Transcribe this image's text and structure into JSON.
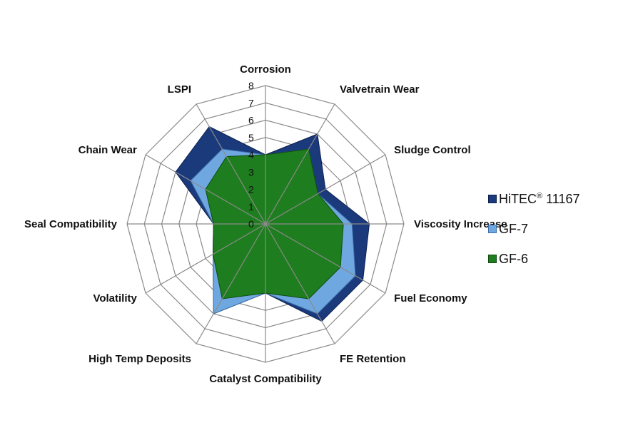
{
  "chart_data": {
    "type": "radar",
    "title": "",
    "axes": [
      "Corrosion",
      "Valvetrain Wear",
      "Sludge Control",
      "Viscosity Increase",
      "Fuel Economy",
      "FE Retention",
      "Catalyst Compatibility",
      "High Temp Deposits",
      "Volatility",
      "Seal Compatibility",
      "Chain Wear",
      "LSPI"
    ],
    "r_ticks": [
      "0",
      "1",
      "2",
      "3",
      "4",
      "5",
      "6",
      "7",
      "8"
    ],
    "rlim": [
      0,
      8
    ],
    "grid": true,
    "legend_position": "right",
    "series": [
      {
        "name": "HiTEC® 11167",
        "color": "#1a3a7c",
        "values": [
          4,
          6,
          4,
          6,
          6.5,
          6.5,
          4,
          6,
          3.5,
          3,
          6,
          6.5
        ]
      },
      {
        "name": "GF-7",
        "color": "#6fa8e0",
        "values": [
          4,
          5,
          3.5,
          5,
          6,
          6,
          4,
          6,
          3.5,
          3,
          5,
          5
        ]
      },
      {
        "name": "GF-6",
        "color": "#1e7d1e",
        "values": [
          4,
          5,
          3.5,
          4.5,
          5,
          5,
          4,
          5,
          3.5,
          3,
          4,
          4.5
        ]
      }
    ]
  },
  "legend": {
    "items": [
      {
        "label": "HiTEC",
        "sup": "®",
        "rest": " 11167",
        "color": "#1a3a7c"
      },
      {
        "label": "GF-7",
        "sup": "",
        "rest": "",
        "color": "#6fa8e0"
      },
      {
        "label": "GF-6",
        "sup": "",
        "rest": "",
        "color": "#1e7d1e"
      }
    ]
  }
}
